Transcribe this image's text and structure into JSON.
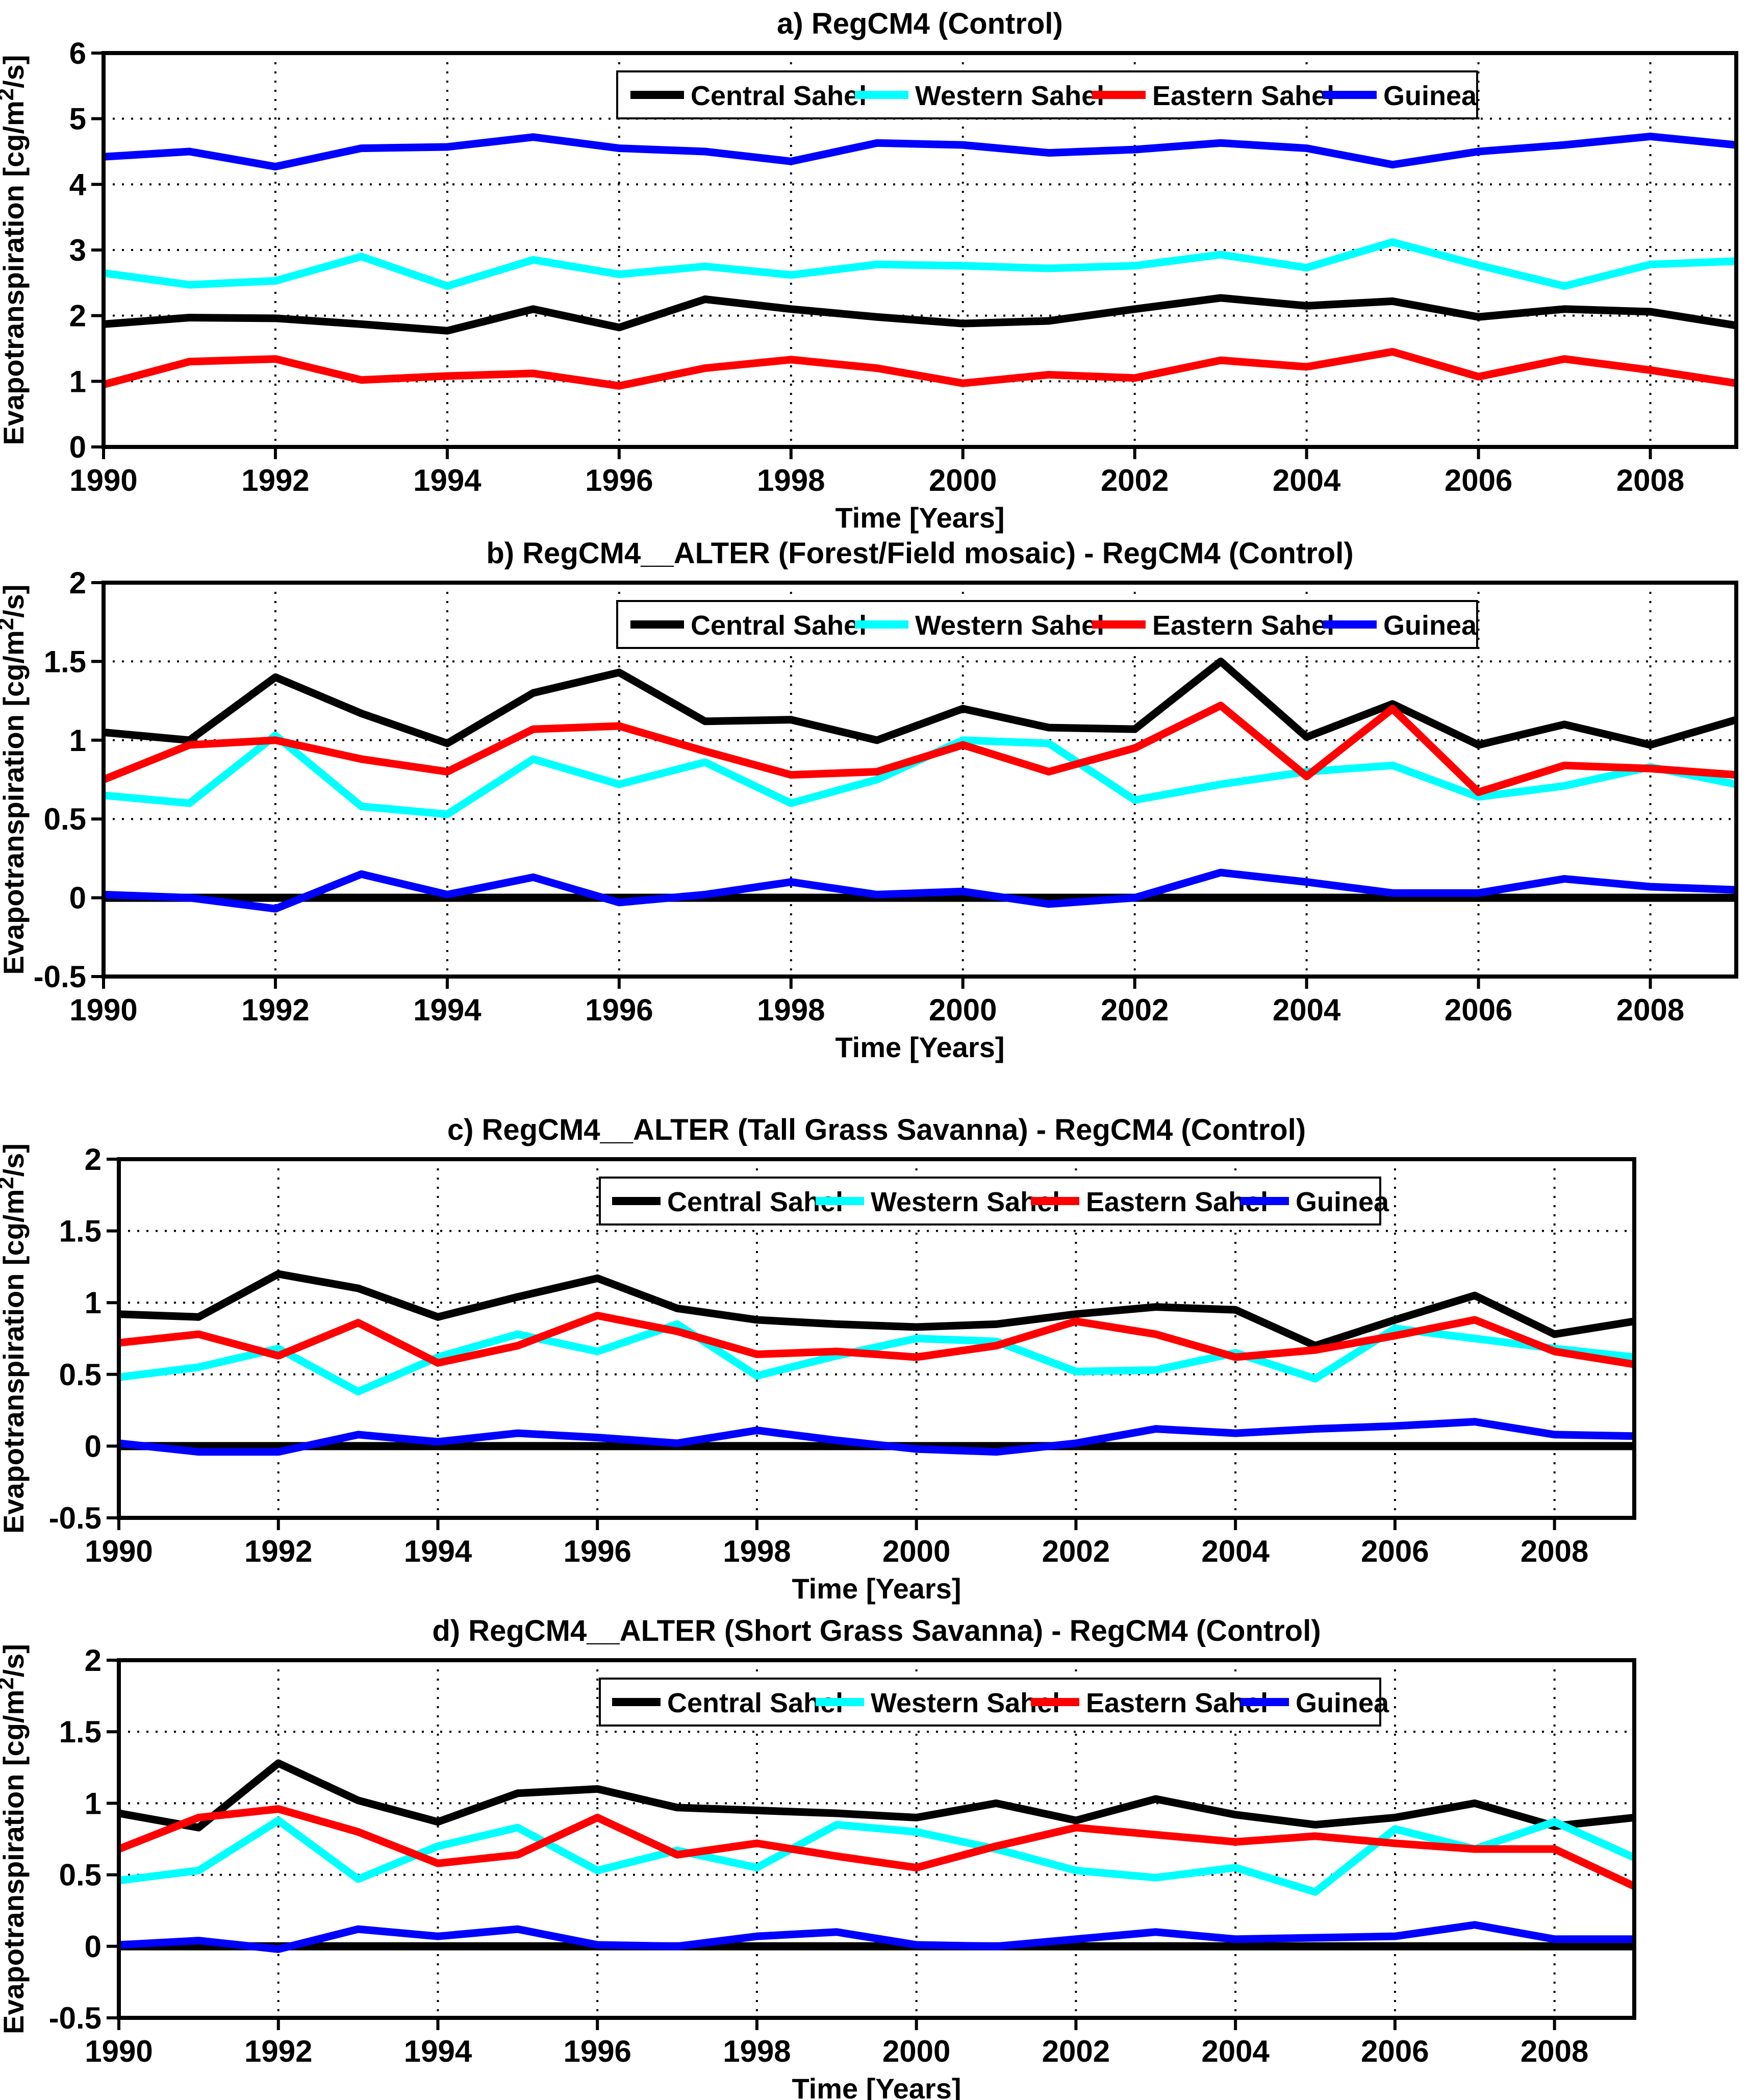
{
  "figure": {
    "xlabel": "Time [Years]",
    "ylabel": "Evapotranspiration [cg/m²/s]",
    "background": "#FFFFFF",
    "legend_labels": [
      "Central Sahel",
      "Western Sahel",
      "Eastern Sahel",
      "Guinea"
    ],
    "series_colors": {
      "Central Sahel": "#000000",
      "Western Sahel": "#00FFFF",
      "Eastern Sahel": "#FF0000",
      "Guinea": "#0000FF"
    }
  },
  "chart_data": [
    {
      "id": "a",
      "type": "line",
      "title": "a) RegCM4 (Control)",
      "xlabel": "Time [Years]",
      "ylabel": "Evapotranspiration [cg/m²/s]",
      "x": [
        1990,
        1991,
        1992,
        1993,
        1994,
        1995,
        1996,
        1997,
        1998,
        1999,
        2000,
        2001,
        2002,
        2003,
        2004,
        2005,
        2006,
        2007,
        2008,
        2009
      ],
      "xticks": [
        1990,
        1992,
        1994,
        1996,
        1998,
        2000,
        2002,
        2004,
        2006,
        2008
      ],
      "xlim": [
        1990,
        2009
      ],
      "ylim": [
        0,
        6
      ],
      "yticks": [
        0,
        1,
        2,
        3,
        4,
        5,
        6
      ],
      "grid": true,
      "legend_position": "top-inside",
      "zero_line": false,
      "series": [
        {
          "name": "Central Sahel",
          "color": "#000000",
          "values": [
            1.87,
            1.97,
            1.96,
            1.87,
            1.77,
            2.1,
            1.82,
            2.25,
            2.1,
            1.98,
            1.88,
            1.92,
            2.1,
            2.27,
            2.15,
            2.22,
            1.98,
            2.1,
            2.06,
            1.85
          ]
        },
        {
          "name": "Western Sahel",
          "color": "#00FFFF",
          "values": [
            2.65,
            2.47,
            2.53,
            2.9,
            2.45,
            2.85,
            2.63,
            2.75,
            2.62,
            2.78,
            2.76,
            2.72,
            2.76,
            2.93,
            2.73,
            3.12,
            2.77,
            2.45,
            2.78,
            2.83
          ]
        },
        {
          "name": "Eastern Sahel",
          "color": "#FF0000",
          "values": [
            0.95,
            1.3,
            1.34,
            1.02,
            1.08,
            1.12,
            0.93,
            1.2,
            1.33,
            1.2,
            0.97,
            1.1,
            1.05,
            1.32,
            1.22,
            1.45,
            1.07,
            1.34,
            1.17,
            0.97
          ]
        },
        {
          "name": "Guinea",
          "color": "#0000FF",
          "values": [
            4.42,
            4.5,
            4.27,
            4.55,
            4.57,
            4.72,
            4.55,
            4.5,
            4.35,
            4.63,
            4.6,
            4.48,
            4.53,
            4.63,
            4.55,
            4.3,
            4.5,
            4.6,
            4.73,
            4.6
          ]
        }
      ]
    },
    {
      "id": "b",
      "type": "line",
      "title": "b) RegCM4__ALTER (Forest/Field mosaic) - RegCM4 (Control)",
      "xlabel": "Time [Years]",
      "ylabel": "Evapotranspiration [cg/m²/s]",
      "x": [
        1990,
        1991,
        1992,
        1993,
        1994,
        1995,
        1996,
        1997,
        1998,
        1999,
        2000,
        2001,
        2002,
        2003,
        2004,
        2005,
        2006,
        2007,
        2008,
        2009
      ],
      "xticks": [
        1990,
        1992,
        1994,
        1996,
        1998,
        2000,
        2002,
        2004,
        2006,
        2008
      ],
      "xlim": [
        1990,
        2009
      ],
      "ylim": [
        -0.5,
        2
      ],
      "yticks": [
        -0.5,
        0,
        0.5,
        1,
        1.5,
        2
      ],
      "grid": true,
      "legend_position": "top-inside",
      "zero_line": true,
      "series": [
        {
          "name": "Central Sahel",
          "color": "#000000",
          "values": [
            1.05,
            1.0,
            1.4,
            1.17,
            0.98,
            1.3,
            1.43,
            1.12,
            1.13,
            1.0,
            1.2,
            1.08,
            1.07,
            1.5,
            1.02,
            1.23,
            0.97,
            1.1,
            0.97,
            1.13
          ]
        },
        {
          "name": "Western Sahel",
          "color": "#00FFFF",
          "values": [
            0.65,
            0.6,
            1.03,
            0.58,
            0.53,
            0.88,
            0.72,
            0.86,
            0.6,
            0.75,
            1.0,
            0.98,
            0.62,
            0.72,
            0.8,
            0.84,
            0.64,
            0.71,
            0.83,
            0.72
          ]
        },
        {
          "name": "Eastern Sahel",
          "color": "#FF0000",
          "values": [
            0.75,
            0.97,
            1.0,
            0.88,
            0.8,
            1.07,
            1.09,
            0.93,
            0.78,
            0.8,
            0.97,
            0.8,
            0.95,
            1.22,
            0.77,
            1.2,
            0.67,
            0.84,
            0.82,
            0.78
          ]
        },
        {
          "name": "Guinea",
          "color": "#0000FF",
          "values": [
            0.02,
            0.0,
            -0.07,
            0.15,
            0.02,
            0.13,
            -0.03,
            0.02,
            0.1,
            0.02,
            0.04,
            -0.04,
            0.0,
            0.16,
            0.1,
            0.03,
            0.03,
            0.12,
            0.07,
            0.05
          ]
        }
      ]
    },
    {
      "id": "c",
      "type": "line",
      "title": "c)  RegCM4__ALTER (Tall Grass Savanna) - RegCM4 (Control)",
      "xlabel": "Time [Years]",
      "ylabel": "Evapotranspiration [cg/m²/s]",
      "x": [
        1990,
        1991,
        1992,
        1993,
        1994,
        1995,
        1996,
        1997,
        1998,
        1999,
        2000,
        2001,
        2002,
        2003,
        2004,
        2005,
        2006,
        2007,
        2008,
        2009
      ],
      "xticks": [
        1990,
        1992,
        1994,
        1996,
        1998,
        2000,
        2002,
        2004,
        2006,
        2008
      ],
      "xlim": [
        1990,
        2009
      ],
      "ylim": [
        -0.5,
        2
      ],
      "yticks": [
        -0.5,
        0,
        0.5,
        1,
        1.5,
        2
      ],
      "grid": true,
      "legend_position": "top-inside",
      "zero_line": true,
      "series": [
        {
          "name": "Central Sahel",
          "color": "#000000",
          "values": [
            0.92,
            0.9,
            1.2,
            1.1,
            0.9,
            1.04,
            1.17,
            0.96,
            0.88,
            0.85,
            0.83,
            0.85,
            0.92,
            0.97,
            0.95,
            0.7,
            0.88,
            1.05,
            0.78,
            0.87
          ]
        },
        {
          "name": "Western Sahel",
          "color": "#00FFFF",
          "values": [
            0.48,
            0.55,
            0.68,
            0.38,
            0.62,
            0.78,
            0.66,
            0.85,
            0.49,
            0.63,
            0.75,
            0.73,
            0.52,
            0.53,
            0.65,
            0.47,
            0.82,
            0.75,
            0.68,
            0.62
          ]
        },
        {
          "name": "Eastern Sahel",
          "color": "#FF0000",
          "values": [
            0.72,
            0.78,
            0.63,
            0.86,
            0.58,
            0.7,
            0.91,
            0.8,
            0.64,
            0.66,
            0.62,
            0.7,
            0.87,
            0.78,
            0.62,
            0.67,
            0.77,
            0.88,
            0.66,
            0.57
          ]
        },
        {
          "name": "Guinea",
          "color": "#0000FF",
          "values": [
            0.02,
            -0.04,
            -0.04,
            0.08,
            0.03,
            0.09,
            0.06,
            0.02,
            0.11,
            0.04,
            -0.02,
            -0.04,
            0.02,
            0.12,
            0.09,
            0.12,
            0.14,
            0.17,
            0.08,
            0.07
          ]
        }
      ]
    },
    {
      "id": "d",
      "type": "line",
      "title": "d) RegCM4__ALTER (Short Grass Savanna) - RegCM4 (Control)",
      "xlabel": "Time [Years]",
      "ylabel": "Evapotranspiration [cg/m²/s]",
      "x": [
        1990,
        1991,
        1992,
        1993,
        1994,
        1995,
        1996,
        1997,
        1998,
        1999,
        2000,
        2001,
        2002,
        2003,
        2004,
        2005,
        2006,
        2007,
        2008,
        2009
      ],
      "xticks": [
        1990,
        1992,
        1994,
        1996,
        1998,
        2000,
        2002,
        2004,
        2006,
        2008
      ],
      "xlim": [
        1990,
        2009
      ],
      "ylim": [
        -0.5,
        2
      ],
      "yticks": [
        -0.5,
        0,
        0.5,
        1,
        1.5,
        2
      ],
      "grid": true,
      "legend_position": "top-inside",
      "zero_line": true,
      "series": [
        {
          "name": "Central Sahel",
          "color": "#000000",
          "values": [
            0.93,
            0.83,
            1.28,
            1.02,
            0.87,
            1.07,
            1.1,
            0.97,
            0.95,
            0.93,
            0.9,
            1.0,
            0.88,
            1.03,
            0.92,
            0.85,
            0.9,
            1.0,
            0.84,
            0.9
          ]
        },
        {
          "name": "Western Sahel",
          "color": "#00FFFF",
          "values": [
            0.46,
            0.53,
            0.88,
            0.47,
            0.7,
            0.83,
            0.53,
            0.67,
            0.55,
            0.85,
            0.8,
            0.68,
            0.53,
            0.48,
            0.55,
            0.38,
            0.82,
            0.68,
            0.87,
            0.62
          ]
        },
        {
          "name": "Eastern Sahel",
          "color": "#FF0000",
          "values": [
            0.68,
            0.9,
            0.96,
            0.8,
            0.58,
            0.64,
            0.9,
            0.64,
            0.72,
            0.63,
            0.55,
            0.7,
            0.83,
            0.78,
            0.73,
            0.77,
            0.72,
            0.68,
            0.68,
            0.42
          ]
        },
        {
          "name": "Guinea",
          "color": "#0000FF",
          "values": [
            0.01,
            0.04,
            -0.02,
            0.12,
            0.07,
            0.12,
            0.01,
            0.0,
            0.07,
            0.1,
            0.01,
            0.0,
            0.05,
            0.1,
            0.05,
            0.06,
            0.07,
            0.15,
            0.05,
            0.05
          ]
        }
      ]
    }
  ]
}
